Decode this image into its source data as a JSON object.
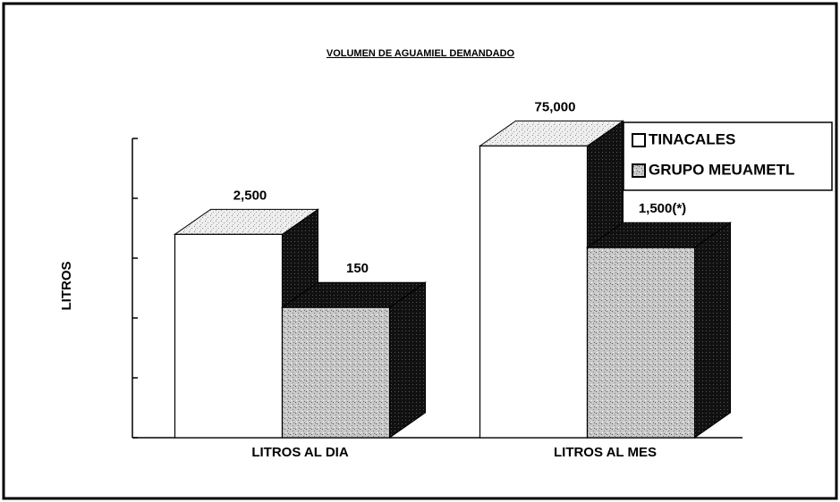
{
  "chart_data": {
    "type": "bar3d",
    "title": "VOLUMEN DE AGUAMIEL DEMANDADO",
    "y_label": "LITROS",
    "categories": [
      "LITROS AL DIA",
      "LITROS AL MES"
    ],
    "series": [
      {
        "name": "TINACALES",
        "color": "#ffffff",
        "values": [
          2500,
          75000
        ],
        "value_labels": [
          "2,500",
          "75,000"
        ]
      },
      {
        "name": "GRUPO MEUAMETL",
        "color": "#b4b4b4",
        "values": [
          150,
          1500
        ],
        "value_labels": [
          "150",
          "1,500(*)"
        ]
      }
    ],
    "log_scale": true,
    "ylim": [
      1,
      100000
    ],
    "yticks": [
      1,
      10,
      100,
      1000,
      10000,
      100000
    ],
    "legend": "top-right"
  }
}
